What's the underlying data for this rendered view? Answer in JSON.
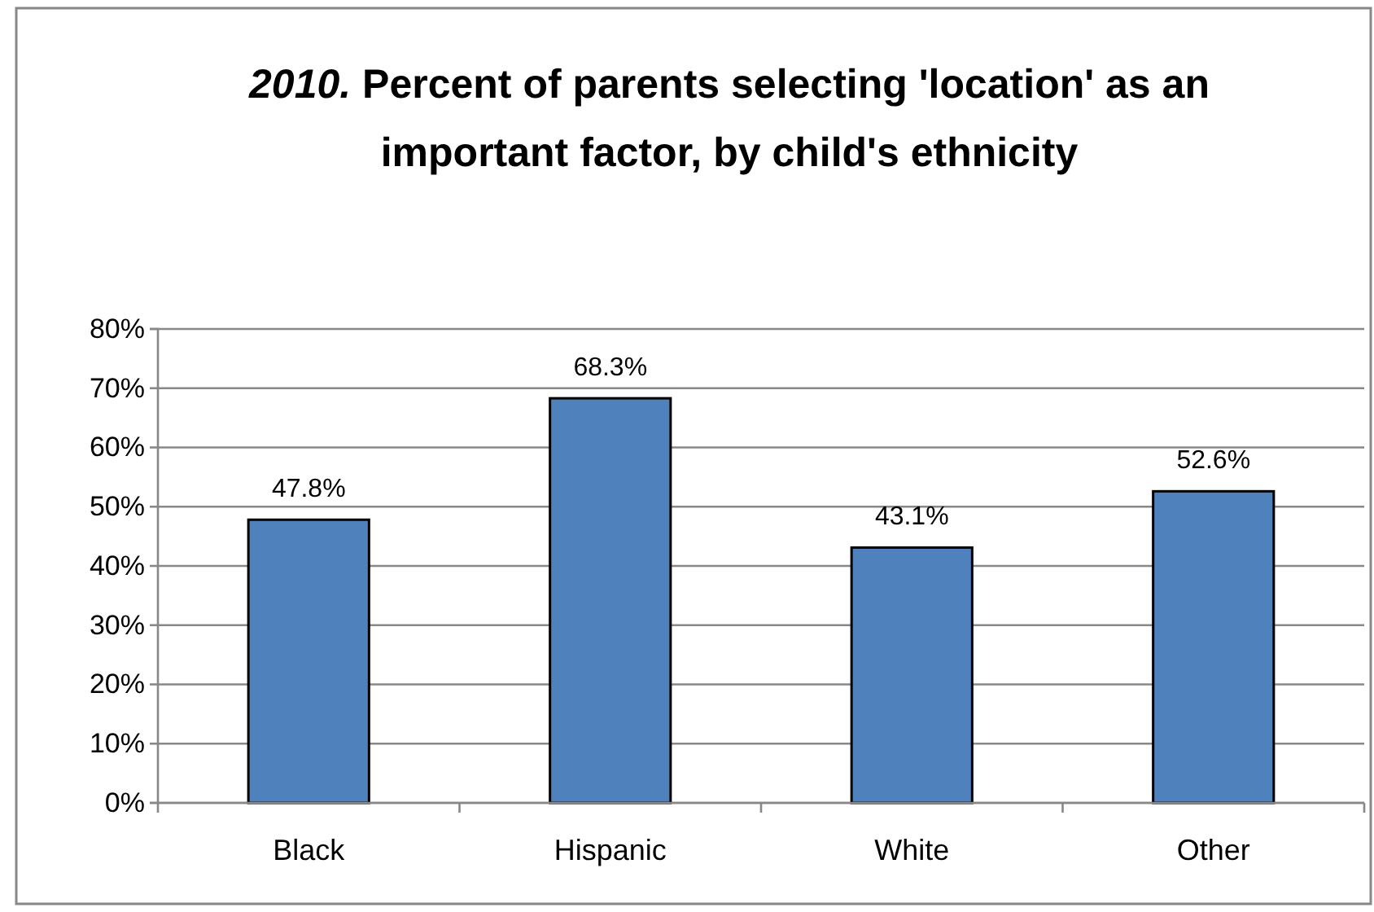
{
  "chart_data": {
    "type": "bar",
    "title": "2010. Percent of parents selecting 'location' as an important factor, by child's ethnicity",
    "categories": [
      "Black",
      "Hispanic",
      "White",
      "Other"
    ],
    "values": [
      47.8,
      68.3,
      43.1,
      52.6
    ],
    "value_labels": [
      "47.8%",
      "68.3%",
      "43.1%",
      "52.6%"
    ],
    "color": "#4f81bd",
    "ylim": [
      0,
      80
    ],
    "yticks": [
      {
        "value": 0,
        "label": "0%"
      },
      {
        "value": 10,
        "label": "10%"
      },
      {
        "value": 20,
        "label": "20%"
      },
      {
        "value": 30,
        "label": "30%"
      },
      {
        "value": 40,
        "label": "40%"
      },
      {
        "value": 50,
        "label": "50%"
      },
      {
        "value": 60,
        "label": "60%"
      },
      {
        "value": 70,
        "label": "70%"
      },
      {
        "value": 80,
        "label": "80%"
      }
    ],
    "grid": "y"
  }
}
